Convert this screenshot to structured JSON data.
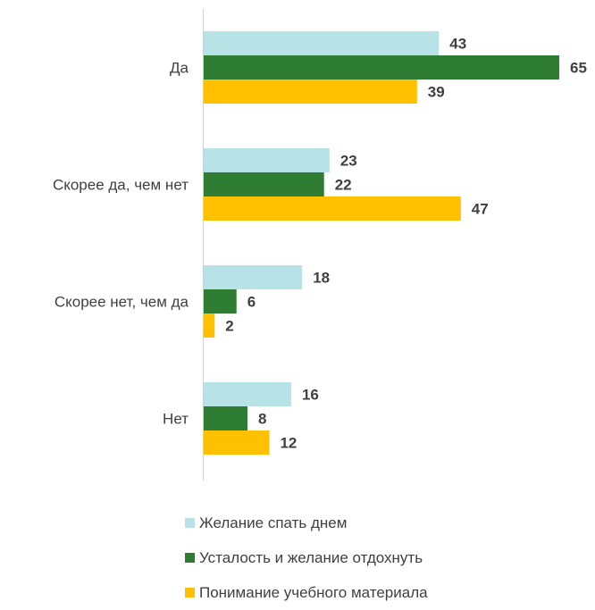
{
  "chart_data": {
    "type": "bar",
    "orientation": "horizontal",
    "categories": [
      "Да",
      "Скорее да, чем нет",
      "Скорее нет, чем да",
      "Нет"
    ],
    "series": [
      {
        "name": "Желание спать днем",
        "color": "#b7e3e6",
        "values": [
          43,
          23,
          18,
          16
        ]
      },
      {
        "name": "Усталость и желание отдохнуть",
        "color": "#2e7d32",
        "values": [
          65,
          22,
          6,
          8
        ]
      },
      {
        "name": "Понимание учебного материала",
        "color": "#ffc000",
        "values": [
          39,
          47,
          2,
          12
        ]
      }
    ],
    "xlim": [
      0,
      65
    ],
    "data_labels": true,
    "gridlines": false,
    "legend_position": "bottom",
    "title": "",
    "xlabel": "",
    "ylabel": ""
  }
}
